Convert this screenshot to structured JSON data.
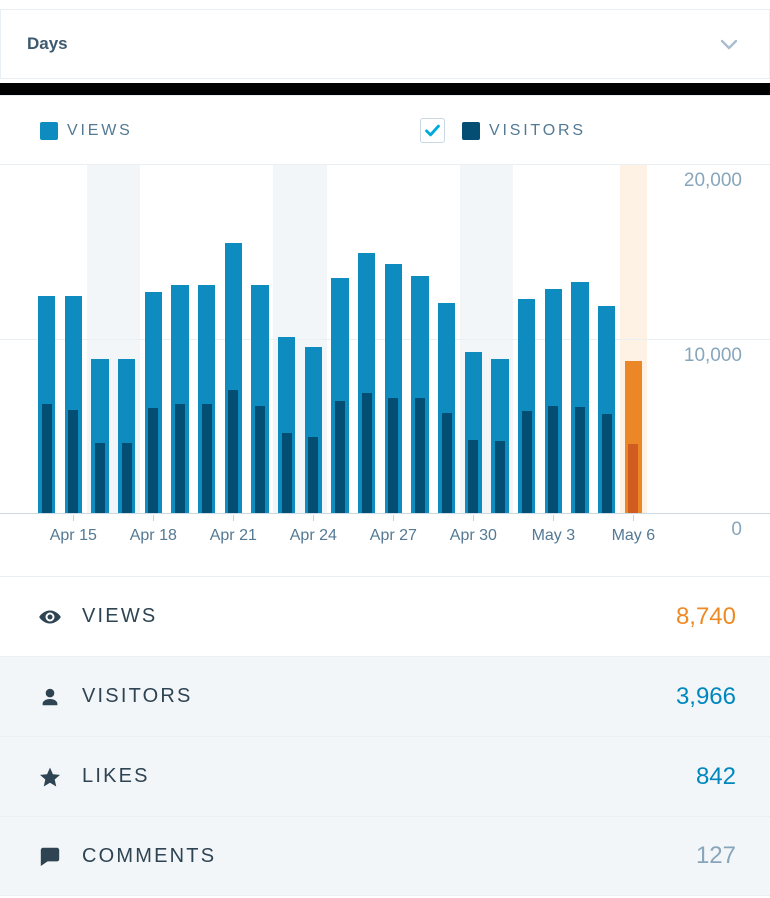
{
  "header": {
    "title": "Days"
  },
  "legend": {
    "views": {
      "label": "VIEWS"
    },
    "visitors": {
      "label": "VISITORS",
      "checked": true
    }
  },
  "colors": {
    "views_bar": "#0f8cbf",
    "visitors_bar": "#034e72",
    "today_views_bar": "#ec8727",
    "today_visitors_bar": "#d05c1f",
    "today_column_bg": "#fdf2e4",
    "weekend_stripe": "#f3f6f8",
    "accent_blue": "#0087be",
    "accent_orange": "#ee8a24",
    "muted_gray": "#87a6bc",
    "check_blue": "#00aadc"
  },
  "chart_data": {
    "type": "bar",
    "title": "Daily views and visitors",
    "ylim": [
      0,
      20000
    ],
    "yticks": [
      {
        "value": 20000,
        "label": "20,000"
      },
      {
        "value": 10000,
        "label": "10,000"
      },
      {
        "value": 0,
        "label": "0"
      }
    ],
    "series_names": [
      "Views",
      "Visitors"
    ],
    "days": [
      {
        "label": "",
        "views": 12430,
        "visitors": 6220,
        "weekend": false,
        "today": false
      },
      {
        "label": "Apr 15",
        "views": 12430,
        "visitors": 5930,
        "weekend": false,
        "today": false
      },
      {
        "label": "",
        "views": 8830,
        "visitors": 4030,
        "weekend": true,
        "today": false
      },
      {
        "label": "",
        "views": 8830,
        "visitors": 4030,
        "weekend": true,
        "today": false
      },
      {
        "label": "Apr 18",
        "views": 12650,
        "visitors": 5990,
        "weekend": false,
        "today": false
      },
      {
        "label": "",
        "views": 13080,
        "visitors": 6220,
        "weekend": false,
        "today": false
      },
      {
        "label": "",
        "views": 13080,
        "visitors": 6270,
        "weekend": false,
        "today": false
      },
      {
        "label": "Apr 21",
        "views": 15500,
        "visitors": 7070,
        "weekend": false,
        "today": false
      },
      {
        "label": "",
        "views": 13080,
        "visitors": 6130,
        "weekend": false,
        "today": false
      },
      {
        "label": "",
        "views": 10070,
        "visitors": 4600,
        "weekend": true,
        "today": false
      },
      {
        "label": "Apr 24",
        "views": 9500,
        "visitors": 4370,
        "weekend": true,
        "today": false
      },
      {
        "label": "",
        "views": 13460,
        "visitors": 6410,
        "weekend": false,
        "today": false
      },
      {
        "label": "",
        "views": 14880,
        "visitors": 6900,
        "weekend": false,
        "today": false
      },
      {
        "label": "Apr 27",
        "views": 14260,
        "visitors": 6600,
        "weekend": false,
        "today": false
      },
      {
        "label": "",
        "views": 13610,
        "visitors": 6590,
        "weekend": false,
        "today": false
      },
      {
        "label": "",
        "views": 12030,
        "visitors": 5740,
        "weekend": false,
        "today": false
      },
      {
        "label": "Apr 30",
        "views": 9230,
        "visitors": 4180,
        "weekend": true,
        "today": false
      },
      {
        "label": "",
        "views": 8830,
        "visitors": 4130,
        "weekend": true,
        "today": false
      },
      {
        "label": "",
        "views": 12280,
        "visitors": 5840,
        "weekend": false,
        "today": false
      },
      {
        "label": "May 3",
        "views": 12830,
        "visitors": 6160,
        "weekend": false,
        "today": false
      },
      {
        "label": "",
        "views": 13230,
        "visitors": 6070,
        "weekend": false,
        "today": false
      },
      {
        "label": "",
        "views": 11880,
        "visitors": 5690,
        "weekend": false,
        "today": false
      },
      {
        "label": "May 6",
        "views": 8740,
        "visitors": 3966,
        "weekend": false,
        "today": true
      }
    ]
  },
  "summary": {
    "rows": [
      {
        "id": "views",
        "icon": "eye",
        "label": "VIEWS",
        "value": "8,740",
        "value_color": "#ee8a24",
        "selected": true
      },
      {
        "id": "visitors",
        "icon": "user",
        "label": "VISITORS",
        "value": "3,966",
        "value_color": "#0087be",
        "selected": false
      },
      {
        "id": "likes",
        "icon": "star",
        "label": "LIKES",
        "value": "842",
        "value_color": "#0087be",
        "selected": false
      },
      {
        "id": "comments",
        "icon": "comment",
        "label": "COMMENTS",
        "value": "127",
        "value_color": "#87a6bc",
        "selected": false
      }
    ]
  }
}
